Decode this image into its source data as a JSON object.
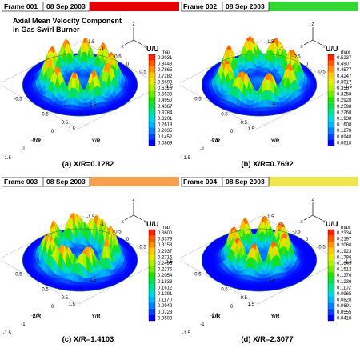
{
  "chart_data": {
    "type": "surface",
    "title_lines": [
      "Axial Mean Velocity Component",
      "in Gas Swirl Burner"
    ],
    "panels": [
      {
        "frame_label": "Frame 001",
        "date": "08 Sep 2003",
        "header_color": "#e60000",
        "caption": "(a) X/R=0.1282",
        "legend_title": "U/U",
        "legend_sub": "max",
        "legend_values": [
          "0.9031",
          "0.8448",
          "0.7865",
          "0.7282",
          "0.6699",
          "0.6116",
          "0.5533",
          "0.4950",
          "0.4367",
          "0.3784",
          "0.3201",
          "0.2618",
          "0.2035",
          "0.1452",
          "0.0869"
        ],
        "ring_petals": 10,
        "ring_radius": 0.55,
        "ring_height": 0.9031,
        "ring_twist": 0.0
      },
      {
        "frame_label": "Frame 002",
        "date": "08 Sep 2003",
        "header_color": "#33d633",
        "caption": "(b) X/R=0.7692",
        "legend_title": "U/U",
        "legend_sub": "max",
        "legend_values": [
          "0.5237",
          "0.4907",
          "0.4577",
          "0.4247",
          "0.3917",
          "0.3587",
          "0.3258",
          "0.2928",
          "0.2598",
          "0.2268",
          "0.1938",
          "0.1608",
          "0.1278",
          "0.0948",
          "0.0618"
        ],
        "ring_petals": 8,
        "ring_radius": 0.6,
        "ring_height": 0.5237,
        "ring_twist": 0.4
      },
      {
        "frame_label": "Frame 003",
        "date": "08 Sep 2003",
        "header_color": "#f5a04f",
        "caption": "(c) X/R=1.4103",
        "legend_title": "U/U",
        "legend_sub": "max",
        "legend_values": [
          "0.3600",
          "0.3379",
          "0.3158",
          "0.2937",
          "0.2716",
          "0.2495",
          "0.2275",
          "0.2054",
          "0.1833",
          "0.1612",
          "0.1391",
          "0.1170",
          "0.0949",
          "0.0728",
          "0.0508"
        ],
        "ring_petals": 8,
        "ring_radius": 0.55,
        "ring_height": 0.36,
        "ring_twist": 1.2
      },
      {
        "frame_label": "Frame 004",
        "date": "08 Sep 2003",
        "header_color": "#f0e650",
        "caption": "(d) X/R=2.3077",
        "legend_title": "U/U",
        "legend_sub": "max",
        "legend_values": [
          "0.2334",
          "0.2197",
          "0.2060",
          "0.1923",
          "0.1786",
          "0.1649",
          "0.1512",
          "0.1376",
          "0.1239",
          "0.1102",
          "0.0965",
          "0.0828",
          "0.0691",
          "0.0555",
          "0.0418"
        ],
        "ring_petals": 8,
        "ring_radius": 0.45,
        "ring_height": 0.2334,
        "ring_twist": 0.2
      }
    ],
    "axes": {
      "xlabel": "Z/R",
      "ylabel": "Y/R",
      "ticks": [
        "-1.5",
        "-1",
        "-0.5",
        "0",
        "0.5",
        "1",
        "1.5"
      ]
    },
    "triad": {
      "x": "X",
      "y": "Y",
      "z": "Z"
    },
    "colormap": [
      "#0000ff",
      "#0060ff",
      "#00b0ff",
      "#00e0d0",
      "#00e070",
      "#20e000",
      "#90f000",
      "#e0f000",
      "#ffc000",
      "#ff7000",
      "#ff2000"
    ]
  }
}
